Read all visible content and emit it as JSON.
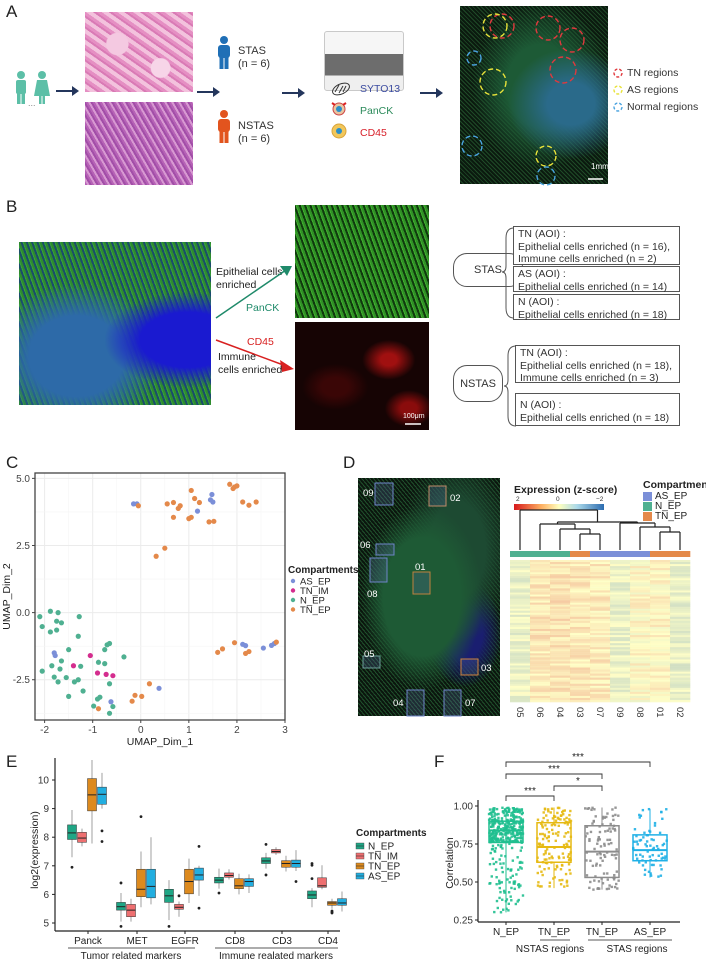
{
  "panels": {
    "A": {
      "letter": "A",
      "patients_ellipsis": "...",
      "groups": [
        {
          "name": "STAS",
          "n": "(n = 6)",
          "color": "#1f6fb6"
        },
        {
          "name": "NSTAS",
          "n": "(n = 6)",
          "color": "#e2541e"
        }
      ],
      "stains": [
        {
          "label": "SYTO13",
          "color": "#3b4ba0"
        },
        {
          "label": "PanCK",
          "color": "#2b8a5a"
        },
        {
          "label": "CD45",
          "color": "#d8202a"
        }
      ],
      "scale_bar": "1mm",
      "region_legend": [
        {
          "label": "TN regions",
          "color": "#e0393e"
        },
        {
          "label": "AS regions",
          "color": "#e8e23a"
        },
        {
          "label": "Normal regions",
          "color": "#4aa3df"
        }
      ]
    },
    "B": {
      "letter": "B",
      "epithelial_label_1": "Epithelial cells",
      "epithelial_label_2": "enriched",
      "panck_label": "PanCK",
      "cd45_label": "CD45",
      "immune_label_1": "Immune",
      "immune_label_2": "cells enriched",
      "scale_bar": "100μm",
      "stas": {
        "label": "STAS",
        "boxes": [
          {
            "title": "TN (AOI) :",
            "lines": [
              "Epithelial cells enriched (n = 16),",
              "Immune cells enriched (n = 2)"
            ]
          },
          {
            "title": "AS (AOI) :",
            "lines": [
              "Epithelial cells enriched (n = 14)"
            ]
          },
          {
            "title": "N (AOI) :",
            "lines": [
              "Epithelial cells enriched (n = 18)"
            ]
          }
        ]
      },
      "nstas": {
        "label": "NSTAS",
        "boxes": [
          {
            "title": "TN (AOI) :",
            "lines": [
              "Epithelial cells enriched (n = 18),",
              "Immune cells enriched (n = 3)"
            ]
          },
          {
            "title": "N (AOI) :",
            "lines": [
              "Epithelial cells enriched (n = 18)"
            ]
          }
        ]
      }
    },
    "C": {
      "letter": "C"
    },
    "D": {
      "letter": "D",
      "roi_labels": [
        "09",
        "02",
        "06",
        "01",
        "08",
        "05",
        "03",
        "04",
        "07"
      ],
      "colorbar_title": "Expression (z-score)",
      "colorbar_ticks": [
        "2",
        "0",
        "−2"
      ],
      "legend_title": "Compartments",
      "legend": [
        {
          "label": "AS_EP",
          "color": "#7b8fd8"
        },
        {
          "label": "N_EP",
          "color": "#4fb091"
        },
        {
          "label": "TN_EP",
          "color": "#e4894a"
        }
      ],
      "column_labels": [
        "05",
        "06",
        "04",
        "03",
        "07",
        "09",
        "08",
        "01",
        "02"
      ]
    },
    "E": {
      "letter": "E"
    },
    "F": {
      "letter": "F"
    }
  },
  "chart_data": [
    {
      "panel": "C",
      "type": "scatter",
      "title": "",
      "xlabel": "UMAP_Dim_1",
      "ylabel": "UMAP_Dim_2",
      "xlim": [
        -2.2,
        3.0
      ],
      "ylim": [
        -4.0,
        5.2
      ],
      "x_ticks": [
        "-2",
        "-1",
        "0",
        "1",
        "2",
        "3"
      ],
      "y_ticks": [
        "5.0",
        "2.5",
        "0.0",
        "-2.5"
      ],
      "grid": true,
      "legend_title": "Compartments",
      "legend_position": "right",
      "series": [
        {
          "name": "AS_EP",
          "color": "#7b8fd8",
          "points": [
            [
              -0.15,
              4.05
            ],
            [
              -0.08,
              4.05
            ],
            [
              1.18,
              3.78
            ],
            [
              1.45,
              4.2
            ],
            [
              1.48,
              4.4
            ],
            [
              1.5,
              4.12
            ],
            [
              2.12,
              -1.18
            ],
            [
              2.18,
              -1.23
            ],
            [
              2.55,
              -1.32
            ],
            [
              2.72,
              -1.22
            ],
            [
              2.78,
              -1.15
            ],
            [
              -1.8,
              -1.5
            ],
            [
              -1.78,
              -1.6
            ],
            [
              0.38,
              -2.82
            ],
            [
              -0.62,
              -3.32
            ]
          ]
        },
        {
          "name": "TN_IM",
          "color": "#d42d8e",
          "points": [
            [
              -1.05,
              -1.6
            ],
            [
              -1.4,
              -1.98
            ],
            [
              -0.9,
              -2.25
            ],
            [
              -0.72,
              -2.3
            ],
            [
              -0.58,
              -2.35
            ]
          ]
        },
        {
          "name": "N_EP",
          "color": "#4fb091",
          "points": [
            [
              -2.1,
              -0.15
            ],
            [
              -2.05,
              -0.52
            ],
            [
              -1.88,
              0.05
            ],
            [
              -1.88,
              -0.72
            ],
            [
              -1.75,
              -0.32
            ],
            [
              -1.75,
              -0.65
            ],
            [
              -1.72,
              0.0
            ],
            [
              -1.65,
              -0.38
            ],
            [
              -1.28,
              -0.15
            ],
            [
              -1.3,
              -0.88
            ],
            [
              -2.05,
              -2.18
            ],
            [
              -1.85,
              -1.98
            ],
            [
              -1.8,
              -2.4
            ],
            [
              -1.72,
              -2.58
            ],
            [
              -1.68,
              -2.1
            ],
            [
              -1.65,
              -1.8
            ],
            [
              -1.55,
              -2.42
            ],
            [
              -1.5,
              -1.38
            ],
            [
              -1.5,
              -3.12
            ],
            [
              -1.38,
              -2.58
            ],
            [
              -1.3,
              -2.5
            ],
            [
              -1.25,
              -2.0
            ],
            [
              -1.2,
              -2.92
            ],
            [
              -0.98,
              -3.48
            ],
            [
              -0.9,
              -3.22
            ],
            [
              -0.85,
              -3.15
            ],
            [
              -0.88,
              -1.85
            ],
            [
              -0.75,
              -1.38
            ],
            [
              -0.75,
              -1.9
            ],
            [
              -0.7,
              -1.2
            ],
            [
              -0.65,
              -1.15
            ],
            [
              -0.65,
              -2.65
            ],
            [
              -0.58,
              -3.5
            ],
            [
              -0.35,
              -1.65
            ],
            [
              -0.65,
              -3.75
            ]
          ]
        },
        {
          "name": "TN_EP",
          "color": "#e4894a",
          "points": [
            [
              -0.05,
              3.98
            ],
            [
              0.55,
              4.05
            ],
            [
              0.68,
              3.55
            ],
            [
              0.68,
              4.1
            ],
            [
              0.78,
              3.88
            ],
            [
              0.82,
              3.98
            ],
            [
              1.0,
              3.5
            ],
            [
              1.05,
              3.55
            ],
            [
              1.05,
              4.55
            ],
            [
              1.12,
              4.25
            ],
            [
              1.22,
              4.1
            ],
            [
              1.42,
              3.38
            ],
            [
              1.52,
              3.4
            ],
            [
              1.85,
              4.78
            ],
            [
              1.92,
              4.62
            ],
            [
              1.95,
              4.68
            ],
            [
              2.0,
              4.72
            ],
            [
              2.12,
              4.12
            ],
            [
              2.25,
              4.0
            ],
            [
              2.4,
              4.12
            ],
            [
              0.32,
              2.1
            ],
            [
              0.5,
              2.4
            ],
            [
              1.6,
              -1.48
            ],
            [
              1.7,
              -1.35
            ],
            [
              1.95,
              -1.12
            ],
            [
              2.18,
              -1.52
            ],
            [
              2.25,
              -1.45
            ],
            [
              2.82,
              -1.1
            ],
            [
              0.18,
              -2.65
            ],
            [
              -0.12,
              -3.08
            ],
            [
              0.02,
              -3.12
            ],
            [
              -0.18,
              -3.3
            ],
            [
              -0.88,
              -3.58
            ]
          ]
        }
      ]
    },
    {
      "panel": "D",
      "type": "heatmap",
      "title": "Expression (z-score)",
      "color_scale": {
        "min": -2,
        "mid": 0,
        "max": 2,
        "colors": [
          "#2166ac",
          "#ffffbf",
          "#d7191c"
        ]
      },
      "columns": [
        "05",
        "06",
        "04",
        "03",
        "07",
        "09",
        "08",
        "01",
        "02"
      ],
      "column_compartments": [
        "N_EP",
        "N_EP",
        "N_EP",
        "TN_EP",
        "AS_EP",
        "AS_EP",
        "AS_EP",
        "TN_EP",
        "TN_EP"
      ],
      "column_mean_zscore_approx": [
        -0.4,
        0.5,
        0.6,
        0.5,
        0.4,
        -0.4,
        0.1,
        0.2,
        -0.5
      ]
    },
    {
      "panel": "E",
      "type": "box",
      "title": "",
      "xlabel": "",
      "ylabel": "log2(expression)",
      "ylim": [
        4.9,
        10.7
      ],
      "y_ticks": [
        "5",
        "6",
        "7",
        "8",
        "9",
        "10"
      ],
      "categories": [
        "Panck",
        "MET",
        "EGFR",
        "CD8",
        "CD3",
        "CD4"
      ],
      "category_groups": [
        {
          "label": "Tumor related markers",
          "categories": [
            "Panck",
            "MET",
            "EGFR"
          ]
        },
        {
          "label": "Immune realated markers",
          "categories": [
            "CD8",
            "CD3",
            "CD4"
          ]
        }
      ],
      "legend_title": "Compartments",
      "series": [
        {
          "name": "N_EP",
          "color": "#1fa685",
          "boxes": [
            {
              "q1": 7.92,
              "median": 8.15,
              "q3": 8.43,
              "low": 7.3,
              "high": 8.95,
              "outliers": [
                6.95
              ]
            },
            {
              "q1": 5.45,
              "median": 5.57,
              "q3": 5.72,
              "low": 5.05,
              "high": 6.05,
              "outliers": [
                6.4,
                4.88
              ]
            },
            {
              "q1": 5.72,
              "median": 5.95,
              "q3": 6.18,
              "low": 5.1,
              "high": 6.5,
              "outliers": [
                4.88
              ]
            },
            {
              "q1": 6.4,
              "median": 6.5,
              "q3": 6.6,
              "low": 6.2,
              "high": 6.9,
              "outliers": [
                6.05
              ]
            },
            {
              "q1": 7.08,
              "median": 7.17,
              "q3": 7.28,
              "low": 6.9,
              "high": 7.45,
              "outliers": [
                7.75,
                6.68
              ]
            },
            {
              "q1": 5.85,
              "median": 5.98,
              "q3": 6.12,
              "low": 5.55,
              "high": 6.22,
              "outliers": [
                7.08,
                7.02,
                6.55
              ]
            }
          ]
        },
        {
          "name": "TN_IM",
          "color": "#ee6f70",
          "boxes": [
            {
              "q1": 7.82,
              "median": 7.97,
              "q3": 8.17,
              "low": 7.68,
              "high": 8.3,
              "outliers": []
            },
            {
              "q1": 5.22,
              "median": 5.45,
              "q3": 5.65,
              "low": 5.05,
              "high": 5.85,
              "outliers": []
            },
            {
              "q1": 5.48,
              "median": 5.55,
              "q3": 5.65,
              "low": 5.22,
              "high": 5.75,
              "outliers": [
                5.95
              ]
            },
            {
              "q1": 6.6,
              "median": 6.66,
              "q3": 6.75,
              "low": 6.52,
              "high": 6.88,
              "outliers": []
            },
            {
              "q1": 7.45,
              "median": 7.5,
              "q3": 7.57,
              "low": 7.38,
              "high": 7.65,
              "outliers": []
            },
            {
              "q1": 6.25,
              "median": 6.3,
              "q3": 6.58,
              "low": 6.18,
              "high": 7.02,
              "outliers": []
            }
          ]
        },
        {
          "name": "TN_EP",
          "color": "#dd8a1e",
          "boxes": [
            {
              "q1": 8.92,
              "median": 9.48,
              "q3": 10.05,
              "low": 7.78,
              "high": 10.7,
              "outliers": []
            },
            {
              "q1": 5.92,
              "median": 6.18,
              "q3": 6.88,
              "low": 5.55,
              "high": 7.5,
              "outliers": [
                8.72
              ]
            },
            {
              "q1": 6.02,
              "median": 6.45,
              "q3": 6.88,
              "low": 5.7,
              "high": 7.25,
              "outliers": []
            },
            {
              "q1": 6.2,
              "median": 6.3,
              "q3": 6.55,
              "low": 6.0,
              "high": 6.72,
              "outliers": []
            },
            {
              "q1": 6.95,
              "median": 7.08,
              "q3": 7.18,
              "low": 6.8,
              "high": 7.35,
              "outliers": []
            },
            {
              "q1": 5.62,
              "median": 5.7,
              "q3": 5.75,
              "low": 5.5,
              "high": 5.85,
              "outliers": [
                5.42,
                5.38,
                5.35
              ]
            }
          ]
        },
        {
          "name": "AS_EP",
          "color": "#22aee0",
          "boxes": [
            {
              "q1": 9.15,
              "median": 9.5,
              "q3": 9.75,
              "low": 9.0,
              "high": 10.25,
              "outliers": [
                8.22,
                7.85
              ]
            },
            {
              "q1": 5.88,
              "median": 6.28,
              "q3": 6.88,
              "low": 5.65,
              "high": 8.0,
              "outliers": []
            },
            {
              "q1": 6.5,
              "median": 6.68,
              "q3": 6.92,
              "low": 5.95,
              "high": 7.0,
              "outliers": [
                7.68,
                5.52
              ]
            },
            {
              "q1": 6.28,
              "median": 6.45,
              "q3": 6.55,
              "low": 6.05,
              "high": 6.7,
              "outliers": []
            },
            {
              "q1": 6.95,
              "median": 7.08,
              "q3": 7.2,
              "low": 6.82,
              "high": 7.55,
              "outliers": [
                6.45
              ]
            },
            {
              "q1": 5.62,
              "median": 5.7,
              "q3": 5.85,
              "low": 5.4,
              "high": 6.1,
              "outliers": []
            }
          ]
        }
      ]
    },
    {
      "panel": "F",
      "type": "box",
      "title": "",
      "xlabel": "",
      "ylabel": "Correlation",
      "ylim": [
        0.25,
        1.0
      ],
      "y_ticks": [
        "1.00",
        "0.75",
        "0.50",
        "0.25"
      ],
      "categories": [
        "N_EP",
        "TN_EP",
        "TN_EP",
        "AS_EP"
      ],
      "category_groups": [
        {
          "label": "NSTAS regions",
          "categories": [
            "TN_EP"
          ]
        },
        {
          "label": "STAS regions",
          "categories": [
            "TN_EP",
            "AS_EP"
          ]
        }
      ],
      "series": [
        {
          "name": "N_EP",
          "color": "#1fbf8f",
          "q1": 0.76,
          "median": 0.84,
          "q3": 0.9,
          "low": 0.3,
          "high": 0.99
        },
        {
          "name": "TN_EP (NSTAS)",
          "color": "#e6b911",
          "q1": 0.63,
          "median": 0.73,
          "q3": 0.89,
          "low": 0.46,
          "high": 0.99
        },
        {
          "name": "TN_EP (STAS)",
          "color": "#8c8c8c",
          "q1": 0.53,
          "median": 0.7,
          "q3": 0.87,
          "low": 0.45,
          "high": 0.99
        },
        {
          "name": "AS_EP",
          "color": "#1fb0e6",
          "q1": 0.64,
          "median": 0.71,
          "q3": 0.81,
          "low": 0.53,
          "high": 0.98
        }
      ],
      "significance": [
        {
          "from": "N_EP",
          "to": "TN_EP (NSTAS)",
          "label": "***"
        },
        {
          "from": "TN_EP (NSTAS)",
          "to": "TN_EP (STAS)",
          "label": "*"
        },
        {
          "from": "N_EP",
          "to": "TN_EP (STAS)",
          "label": "***"
        },
        {
          "from": "N_EP",
          "to": "AS_EP",
          "label": "***"
        }
      ]
    }
  ]
}
